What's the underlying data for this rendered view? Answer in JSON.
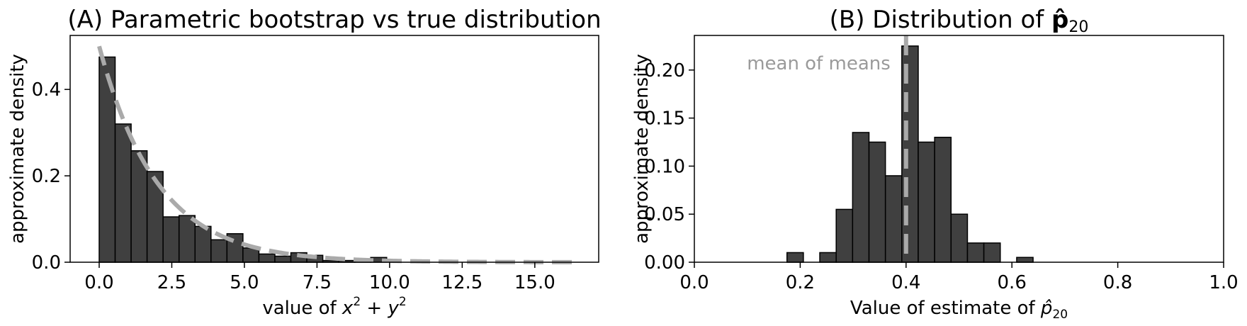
{
  "colors": {
    "bar_fill": "#404040",
    "bar_edge": "#000000",
    "curve": "#aaaaaa",
    "annotation": "#9a9a9a"
  },
  "chart_data": [
    {
      "type": "bar",
      "title": "(A) Parametric bootstrap vs true distribution",
      "xlabel": "value of x² + y²",
      "ylabel": "approximate density",
      "xlim": [
        -1.0,
        17.2
      ],
      "ylim": [
        0,
        0.525
      ],
      "xticks": [
        0,
        2.5,
        5,
        7.5,
        10,
        12.5,
        15
      ],
      "xtick_labels": [
        "0.0",
        "2.5",
        "5.0",
        "7.5",
        "10.0",
        "12.5",
        "15.0"
      ],
      "yticks": [
        0,
        0.2,
        0.4
      ],
      "ytick_labels": [
        "0.0",
        "0.2",
        "0.4"
      ],
      "bin_edges": [
        0,
        0.55,
        1.1,
        1.65,
        2.2,
        2.75,
        3.3,
        3.85,
        4.4,
        4.95,
        5.5,
        6.05,
        6.6,
        7.15,
        7.7,
        8.25,
        8.8,
        9.35,
        9.9
      ],
      "values": [
        0.475,
        0.32,
        0.258,
        0.21,
        0.105,
        0.108,
        0.083,
        0.052,
        0.066,
        0.033,
        0.019,
        0.014,
        0.022,
        0.016,
        0.004,
        0.004,
        0.006,
        0.011
      ],
      "curve": {
        "style": "dashed",
        "x_range": [
          0,
          16.5
        ],
        "y_at_0": 0.5,
        "decay_rate": 0.5
      },
      "grid": false
    },
    {
      "type": "bar",
      "title_prefix": "(B) Distribution of ",
      "title_symbol": "p̂",
      "title_subscript": "20",
      "xlabel_prefix": "Value of estimate of ",
      "xlabel_symbol": "p̂",
      "xlabel_subscript": "20",
      "ylabel": "approximate density",
      "xlim": [
        0,
        1
      ],
      "ylim": [
        0,
        0.236
      ],
      "xticks": [
        0,
        0.2,
        0.4,
        0.6,
        0.8,
        1.0
      ],
      "xtick_labels": [
        "0.0",
        "0.2",
        "0.4",
        "0.6",
        "0.8",
        "1.0"
      ],
      "yticks": [
        0,
        0.05,
        0.1,
        0.15,
        0.2
      ],
      "ytick_labels": [
        "0.00",
        "0.05",
        "0.10",
        "0.15",
        "0.20"
      ],
      "bin_edges": [
        0.175,
        0.206,
        0.237,
        0.268,
        0.299,
        0.33,
        0.361,
        0.392,
        0.423,
        0.454,
        0.485,
        0.516,
        0.547,
        0.578,
        0.609,
        0.64
      ],
      "values": [
        0.01,
        0,
        0.01,
        0.055,
        0.135,
        0.125,
        0.09,
        0.225,
        0.125,
        0.13,
        0.05,
        0.02,
        0.02,
        0,
        0.005
      ],
      "vline": {
        "x": 0.4,
        "style": "dashed",
        "label": "mean of means"
      },
      "grid": false
    }
  ]
}
